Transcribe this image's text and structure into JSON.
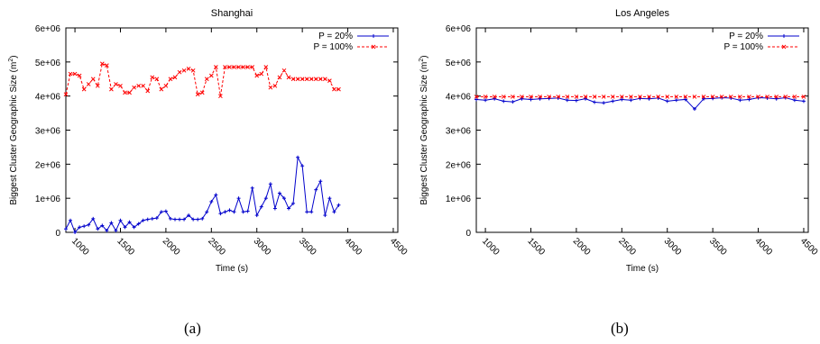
{
  "chart_data": [
    {
      "type": "line",
      "title": "Shanghai",
      "xlabel": "Time (s)",
      "ylabel": "Biggest Cluster Geographic Size (m",
      "ylabel_sup": "2",
      "ylabel_close": ")",
      "xlim": [
        900,
        4550
      ],
      "ylim": [
        0,
        6000000
      ],
      "xticks": [
        1000,
        1500,
        2000,
        2500,
        3000,
        3500,
        4000,
        4500
      ],
      "yticks": [
        0,
        1000000,
        2000000,
        3000000,
        4000000,
        5000000,
        6000000
      ],
      "ytick_labels": [
        "0",
        "1e+06",
        "2e+06",
        "3e+06",
        "4e+06",
        "5e+06",
        "6e+06"
      ],
      "grid": false,
      "legend_position": "top-right",
      "series": [
        {
          "name": "P = 20%",
          "color": "#0000cc",
          "marker": "plus",
          "values": [
            [
              900,
              100000
            ],
            [
              950,
              350000
            ],
            [
              1000,
              0
            ],
            [
              1050,
              150000
            ],
            [
              1100,
              180000
            ],
            [
              1150,
              220000
            ],
            [
              1200,
              400000
            ],
            [
              1250,
              100000
            ],
            [
              1300,
              200000
            ],
            [
              1350,
              50000
            ],
            [
              1400,
              280000
            ],
            [
              1450,
              50000
            ],
            [
              1500,
              350000
            ],
            [
              1550,
              150000
            ],
            [
              1600,
              300000
            ],
            [
              1650,
              150000
            ],
            [
              1700,
              250000
            ],
            [
              1750,
              350000
            ],
            [
              1800,
              380000
            ],
            [
              1850,
              400000
            ],
            [
              1900,
              420000
            ],
            [
              1950,
              600000
            ],
            [
              2000,
              620000
            ],
            [
              2050,
              400000
            ],
            [
              2100,
              380000
            ],
            [
              2150,
              380000
            ],
            [
              2200,
              380000
            ],
            [
              2250,
              500000
            ],
            [
              2300,
              380000
            ],
            [
              2350,
              380000
            ],
            [
              2400,
              400000
            ],
            [
              2450,
              600000
            ],
            [
              2500,
              900000
            ],
            [
              2550,
              1100000
            ],
            [
              2600,
              550000
            ],
            [
              2650,
              600000
            ],
            [
              2700,
              650000
            ],
            [
              2750,
              600000
            ],
            [
              2800,
              1000000
            ],
            [
              2850,
              600000
            ],
            [
              2900,
              620000
            ],
            [
              2950,
              1300000
            ],
            [
              3000,
              500000
            ],
            [
              3050,
              750000
            ],
            [
              3100,
              1000000
            ],
            [
              3150,
              1420000
            ],
            [
              3200,
              700000
            ],
            [
              3250,
              1150000
            ],
            [
              3300,
              1000000
            ],
            [
              3350,
              700000
            ],
            [
              3400,
              850000
            ],
            [
              3450,
              2200000
            ],
            [
              3500,
              1950000
            ],
            [
              3550,
              600000
            ],
            [
              3600,
              600000
            ],
            [
              3650,
              1250000
            ],
            [
              3700,
              1500000
            ],
            [
              3750,
              500000
            ],
            [
              3800,
              1000000
            ],
            [
              3850,
              600000
            ],
            [
              3900,
              800000
            ]
          ]
        },
        {
          "name": "P = 100%",
          "color": "#ff0000",
          "marker": "cross",
          "values": [
            [
              900,
              4050000
            ],
            [
              950,
              4650000
            ],
            [
              1000,
              4650000
            ],
            [
              1050,
              4600000
            ],
            [
              1100,
              4200000
            ],
            [
              1150,
              4350000
            ],
            [
              1200,
              4500000
            ],
            [
              1250,
              4300000
            ],
            [
              1300,
              4950000
            ],
            [
              1350,
              4900000
            ],
            [
              1400,
              4200000
            ],
            [
              1450,
              4350000
            ],
            [
              1500,
              4300000
            ],
            [
              1550,
              4100000
            ],
            [
              1600,
              4100000
            ],
            [
              1650,
              4250000
            ],
            [
              1700,
              4300000
            ],
            [
              1750,
              4300000
            ],
            [
              1800,
              4150000
            ],
            [
              1850,
              4550000
            ],
            [
              1900,
              4500000
            ],
            [
              1950,
              4200000
            ],
            [
              2000,
              4300000
            ],
            [
              2050,
              4500000
            ],
            [
              2100,
              4550000
            ],
            [
              2150,
              4700000
            ],
            [
              2200,
              4750000
            ],
            [
              2250,
              4800000
            ],
            [
              2300,
              4750000
            ],
            [
              2350,
              4050000
            ],
            [
              2400,
              4100000
            ],
            [
              2450,
              4500000
            ],
            [
              2500,
              4600000
            ],
            [
              2550,
              4850000
            ],
            [
              2600,
              4000000
            ],
            [
              2650,
              4850000
            ],
            [
              2700,
              4850000
            ],
            [
              2750,
              4850000
            ],
            [
              2800,
              4850000
            ],
            [
              2850,
              4850000
            ],
            [
              2900,
              4850000
            ],
            [
              2950,
              4850000
            ],
            [
              3000,
              4600000
            ],
            [
              3050,
              4650000
            ],
            [
              3100,
              4850000
            ],
            [
              3150,
              4250000
            ],
            [
              3200,
              4300000
            ],
            [
              3250,
              4550000
            ],
            [
              3300,
              4750000
            ],
            [
              3350,
              4550000
            ],
            [
              3400,
              4500000
            ],
            [
              3450,
              4500000
            ],
            [
              3500,
              4500000
            ],
            [
              3550,
              4500000
            ],
            [
              3600,
              4500000
            ],
            [
              3650,
              4500000
            ],
            [
              3700,
              4500000
            ],
            [
              3750,
              4500000
            ],
            [
              3800,
              4450000
            ],
            [
              3850,
              4200000
            ],
            [
              3900,
              4200000
            ]
          ]
        }
      ]
    },
    {
      "type": "line",
      "title": "Los Angeles",
      "xlabel": "Time (s)",
      "ylabel": "Biggest Cluster Geographic Size (m",
      "ylabel_sup": "2",
      "ylabel_close": ")",
      "xlim": [
        900,
        4550
      ],
      "ylim": [
        0,
        6000000
      ],
      "xticks": [
        1000,
        1500,
        2000,
        2500,
        3000,
        3500,
        4000,
        4500
      ],
      "yticks": [
        0,
        1000000,
        2000000,
        3000000,
        4000000,
        5000000,
        6000000
      ],
      "ytick_labels": [
        "0",
        "1e+06",
        "2e+06",
        "3e+06",
        "4e+06",
        "5e+06",
        "6e+06"
      ],
      "grid": false,
      "legend_position": "top-right",
      "series": [
        {
          "name": "P = 20%",
          "color": "#0000cc",
          "marker": "plus",
          "values": [
            [
              900,
              3900000
            ],
            [
              1000,
              3880000
            ],
            [
              1100,
              3920000
            ],
            [
              1200,
              3850000
            ],
            [
              1300,
              3830000
            ],
            [
              1400,
              3920000
            ],
            [
              1500,
              3900000
            ],
            [
              1600,
              3920000
            ],
            [
              1700,
              3930000
            ],
            [
              1800,
              3940000
            ],
            [
              1900,
              3880000
            ],
            [
              2000,
              3870000
            ],
            [
              2100,
              3920000
            ],
            [
              2200,
              3820000
            ],
            [
              2300,
              3800000
            ],
            [
              2400,
              3850000
            ],
            [
              2500,
              3900000
            ],
            [
              2600,
              3880000
            ],
            [
              2700,
              3930000
            ],
            [
              2800,
              3920000
            ],
            [
              2900,
              3940000
            ],
            [
              3000,
              3850000
            ],
            [
              3100,
              3880000
            ],
            [
              3200,
              3900000
            ],
            [
              3300,
              3620000
            ],
            [
              3400,
              3920000
            ],
            [
              3500,
              3930000
            ],
            [
              3600,
              3950000
            ],
            [
              3700,
              3940000
            ],
            [
              3800,
              3880000
            ],
            [
              3900,
              3900000
            ],
            [
              4000,
              3950000
            ],
            [
              4100,
              3940000
            ],
            [
              4200,
              3920000
            ],
            [
              4300,
              3950000
            ],
            [
              4400,
              3880000
            ],
            [
              4500,
              3850000
            ]
          ]
        },
        {
          "name": "P = 100%",
          "color": "#ff0000",
          "marker": "cross",
          "values": [
            [
              900,
              3980000
            ],
            [
              1000,
              3980000
            ],
            [
              1100,
              3980000
            ],
            [
              1200,
              3980000
            ],
            [
              1300,
              3980000
            ],
            [
              1400,
              3980000
            ],
            [
              1500,
              3980000
            ],
            [
              1600,
              3980000
            ],
            [
              1700,
              3980000
            ],
            [
              1800,
              3980000
            ],
            [
              1900,
              3980000
            ],
            [
              2000,
              3980000
            ],
            [
              2100,
              3980000
            ],
            [
              2200,
              3980000
            ],
            [
              2300,
              3980000
            ],
            [
              2400,
              3980000
            ],
            [
              2500,
              3980000
            ],
            [
              2600,
              3980000
            ],
            [
              2700,
              3980000
            ],
            [
              2800,
              3980000
            ],
            [
              2900,
              3980000
            ],
            [
              3000,
              3980000
            ],
            [
              3100,
              3980000
            ],
            [
              3200,
              3980000
            ],
            [
              3300,
              3980000
            ],
            [
              3400,
              3980000
            ],
            [
              3500,
              3980000
            ],
            [
              3600,
              3980000
            ],
            [
              3700,
              3980000
            ],
            [
              3800,
              3980000
            ],
            [
              3900,
              3980000
            ],
            [
              4000,
              3980000
            ],
            [
              4100,
              3980000
            ],
            [
              4200,
              3980000
            ],
            [
              4300,
              3980000
            ],
            [
              4400,
              3980000
            ],
            [
              4500,
              3980000
            ]
          ]
        }
      ]
    }
  ],
  "captions": {
    "a": "(a)",
    "b": "(b)"
  }
}
